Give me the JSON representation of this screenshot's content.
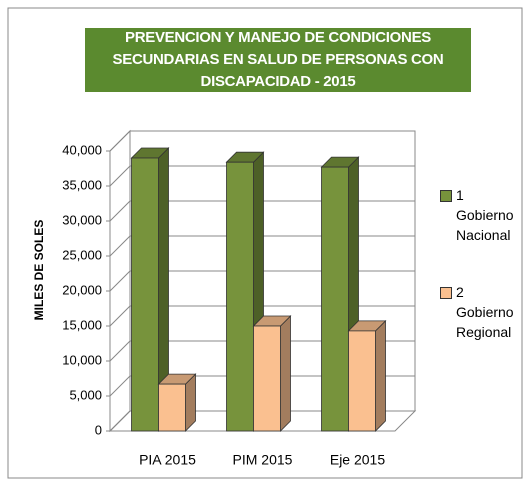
{
  "chart_data": {
    "type": "bar3d",
    "title": "PREVENCION Y MANEJO DE CONDICIONES SECUNDARIAS EN SALUD DE PERSONAS CON DISCAPACIDAD - 2015",
    "y_label": "MILES DE SOLES",
    "categories": [
      "PIA 2015",
      "PIM 2015",
      "Eje 2015"
    ],
    "series": [
      {
        "name": "1 Gobierno Nacional",
        "color": "#77933c",
        "values": [
          39000,
          38400,
          37700
        ]
      },
      {
        "name": "2 Gobierno Regional",
        "color": "#fac090",
        "values": [
          6700,
          15000,
          14300
        ]
      }
    ],
    "ylim": [
      0,
      40000
    ],
    "yticks": [
      0,
      {
        "value": 5000,
        "label": "5,000"
      },
      {
        "value": 10000,
        "label": "10,000"
      },
      {
        "value": 15000,
        "label": "15,000"
      },
      {
        "value": 20000,
        "label": "20,000"
      },
      {
        "value": 25000,
        "label": "25,000"
      },
      {
        "value": 30000,
        "label": "30,000"
      },
      {
        "value": 35000,
        "label": "35,000"
      },
      {
        "value": 40000,
        "label": "40,000"
      }
    ],
    "grid": true,
    "legend": "right"
  }
}
